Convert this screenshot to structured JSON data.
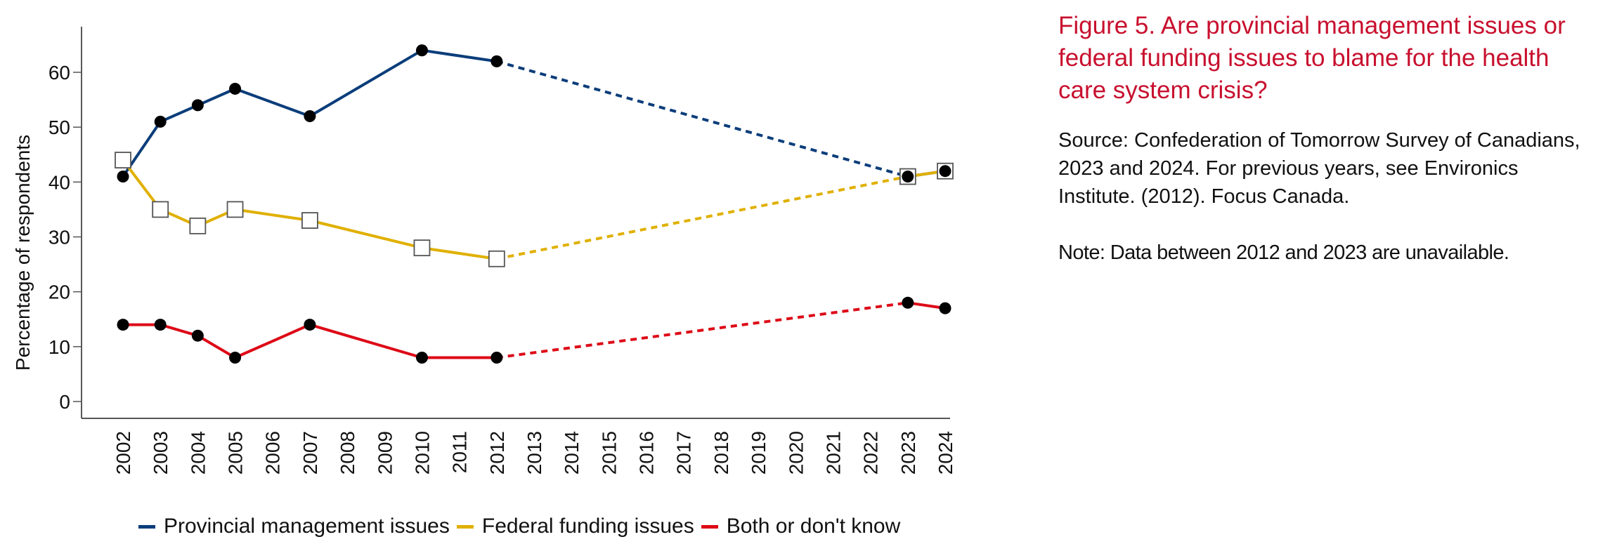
{
  "figure": {
    "title": "Figure 5. Are provincial management issues or federal funding issues to blame for the health care system crisis?",
    "source": "Source: Confederation of Tomorrow Survey of Canadians, 2023 and 2024. For previous years, see Environics Institute. (2012). Focus Canada.",
    "note": "Note: Data between 2012 and 2023 are unavailable."
  },
  "colors": {
    "title": "#c8102e",
    "provincial": "#0b3d7a",
    "federal": "#e0b000",
    "both": "#dd0a17"
  },
  "chart_data": {
    "type": "line",
    "title": "Figure 5. Are provincial management issues or federal funding issues to blame for the health care system crisis?",
    "xlabel": "",
    "ylabel": "Percentage of respondents",
    "x_ticks": [
      "2002",
      "2003",
      "2004",
      "2005",
      "2006",
      "2007",
      "2008",
      "2009",
      "2010",
      "2011",
      "2012",
      "2013",
      "2014",
      "2015",
      "2016",
      "2017",
      "2018",
      "2019",
      "2020",
      "2021",
      "2022",
      "2023",
      "2024"
    ],
    "y_ticks": [
      0,
      10,
      20,
      30,
      40,
      50,
      60
    ],
    "xlim": [
      2002,
      2024
    ],
    "ylim": [
      -3,
      68
    ],
    "grid": false,
    "legend_position": "bottom",
    "gap": {
      "from": 2012,
      "to": 2023,
      "style": "dotted"
    },
    "x": [
      2002,
      2003,
      2004,
      2005,
      2007,
      2010,
      2012,
      2023,
      2024
    ],
    "series": [
      {
        "name": "Provincial management issues",
        "key": "provincial",
        "marker": "circle",
        "values": [
          41,
          51,
          54,
          57,
          52,
          64,
          62,
          41,
          42
        ]
      },
      {
        "name": "Federal funding issues",
        "key": "federal",
        "marker": "square",
        "values": [
          44,
          35,
          32,
          35,
          33,
          28,
          26,
          41,
          42
        ]
      },
      {
        "name": "Both or don't know",
        "key": "both",
        "marker": "circle",
        "values": [
          14,
          14,
          12,
          8,
          14,
          8,
          8,
          18,
          17
        ]
      }
    ]
  }
}
